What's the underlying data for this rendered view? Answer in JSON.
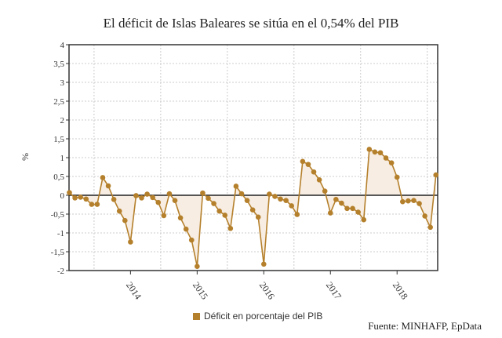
{
  "chart_data": {
    "type": "line",
    "title": "El déficit de Islas Baleares se sitúa en el 0,54% del PIB",
    "ylabel": "%",
    "xlabel": "",
    "ylim": [
      -2,
      4
    ],
    "yticks": [
      "-2",
      "-1,5",
      "-1",
      "-0,5",
      "0",
      "0,5",
      "1",
      "1,5",
      "2",
      "2,5",
      "3",
      "3,5",
      "4"
    ],
    "xticks": [
      "2014",
      "2015",
      "2016",
      "2017",
      "2018"
    ],
    "grid": true,
    "legend_position": "bottom",
    "color": "#b5802c",
    "fill_color": "#f7ede2",
    "x_start": "2013-01",
    "x_end": "2018-07",
    "series": [
      {
        "name": "Déficit en porcentaje del PIB",
        "values": [
          0.07,
          -0.07,
          -0.05,
          -0.1,
          -0.24,
          -0.24,
          0.47,
          0.25,
          -0.11,
          -0.42,
          -0.67,
          -1.24,
          -0.01,
          -0.07,
          0.03,
          -0.06,
          -0.19,
          -0.54,
          0.04,
          -0.14,
          -0.6,
          -0.9,
          -1.19,
          -1.89,
          0.06,
          -0.08,
          -0.22,
          -0.42,
          -0.53,
          -0.88,
          0.24,
          0.04,
          -0.14,
          -0.39,
          -0.58,
          -1.83,
          0.03,
          -0.03,
          -0.1,
          -0.14,
          -0.28,
          -0.51,
          0.9,
          0.82,
          0.62,
          0.41,
          0.11,
          -0.47,
          -0.11,
          -0.21,
          -0.35,
          -0.35,
          -0.45,
          -0.65,
          1.22,
          1.15,
          1.13,
          0.99,
          0.86,
          0.48,
          -0.17,
          -0.15,
          -0.14,
          -0.22,
          -0.55,
          -0.85,
          0.54
        ]
      }
    ]
  },
  "source": "Fuente: MINHAFP, EpData"
}
